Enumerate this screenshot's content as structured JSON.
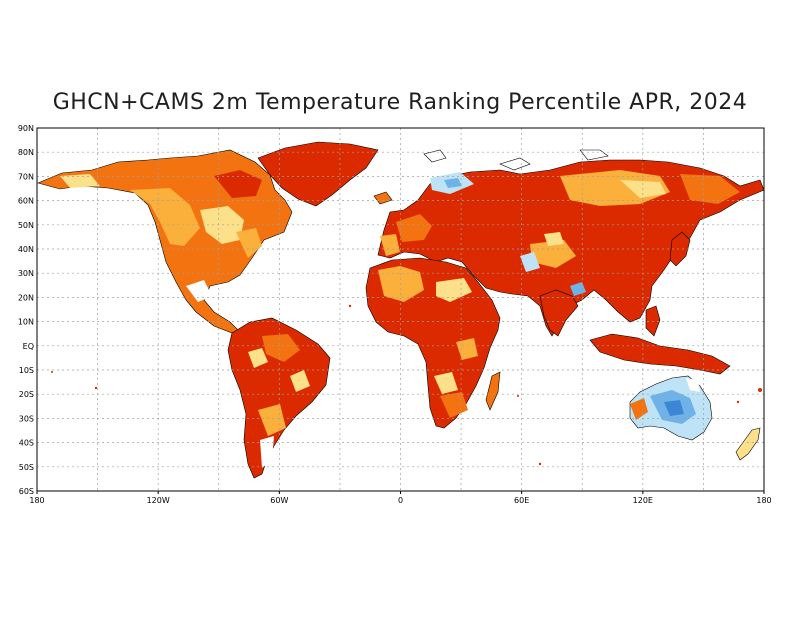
{
  "title": "GHCN+CAMS 2m Temperature Ranking Percentile APR, 2024",
  "lat_labels": [
    "90N",
    "80N",
    "70N",
    "60N",
    "50N",
    "40N",
    "30N",
    "20N",
    "10N",
    "EQ",
    "10S",
    "20S",
    "30S",
    "40S",
    "50S",
    "60S"
  ],
  "lon_labels": [
    "180",
    "120W",
    "60W",
    "0",
    "60E",
    "120E",
    "180"
  ],
  "colors": {
    "record_warm": "#dc2a00",
    "much_above": "#f2730f",
    "above": "#fbb03b",
    "slightly_above": "#fde08a",
    "slightly_below": "#bfe3f6",
    "below": "#6fb2e8",
    "much_below": "#3b87d6",
    "near_normal": "#ffffff",
    "coastline": "#000000",
    "grid": "#a0a0a0"
  }
}
